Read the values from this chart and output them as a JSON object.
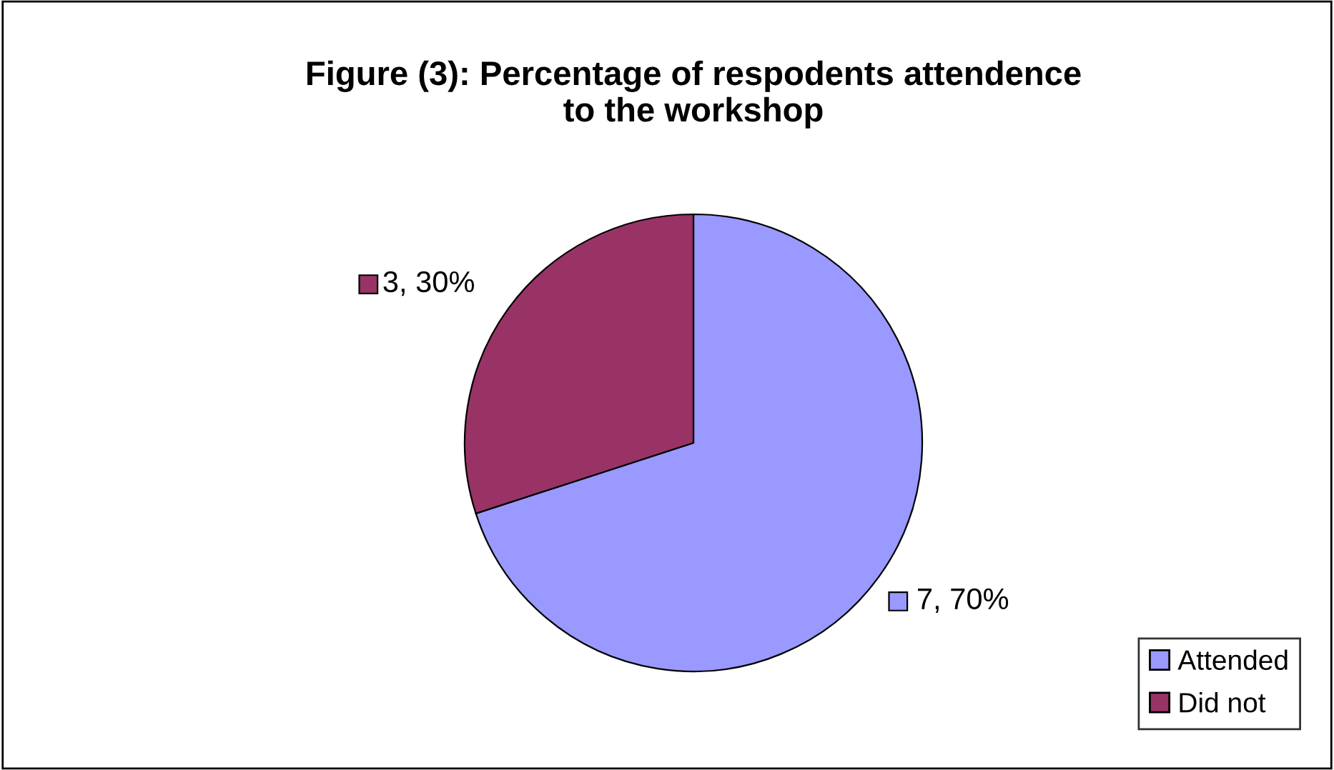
{
  "chart_data": {
    "type": "pie",
    "title": "Figure (3): Percentage of respodents attendence\nto the workshop",
    "categories": [
      "Attended",
      "Did not"
    ],
    "values": [
      7,
      3
    ],
    "colors": [
      "#9999ff",
      "#993366"
    ],
    "value_labels": [
      "7, 70%",
      "3, 30%"
    ],
    "legend": "bottom right"
  }
}
